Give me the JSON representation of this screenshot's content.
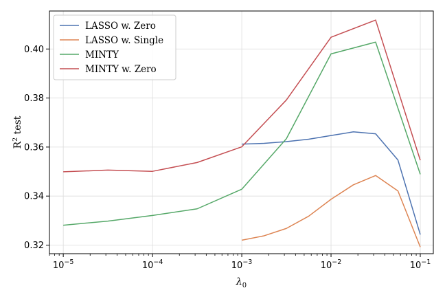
{
  "chart_data": {
    "type": "line",
    "title": "",
    "xlabel": "λ",
    "xlabel_sub": "0",
    "ylabel_base": "R",
    "ylabel_sup": "2",
    "ylabel_rest": " test",
    "xscale": "log",
    "xlim": [
      7e-06,
      0.14
    ],
    "ylim": [
      0.3165,
      0.4155
    ],
    "grid": true,
    "legend_position": "top-left",
    "x_ticks": [
      {
        "value": 1e-05,
        "base": "10",
        "exp": "−5"
      },
      {
        "value": 0.0001,
        "base": "10",
        "exp": "−4"
      },
      {
        "value": 0.001,
        "base": "10",
        "exp": "−3"
      },
      {
        "value": 0.01,
        "base": "10",
        "exp": "−2"
      },
      {
        "value": 0.1,
        "base": "10",
        "exp": "−1"
      }
    ],
    "y_ticks": [
      {
        "value": 0.32,
        "label": "0.32"
      },
      {
        "value": 0.34,
        "label": "0.34"
      },
      {
        "value": 0.36,
        "label": "0.36"
      },
      {
        "value": 0.38,
        "label": "0.38"
      },
      {
        "value": 0.4,
        "label": "0.40"
      }
    ],
    "series": [
      {
        "name": "LASSO w. Zero",
        "color": "#4c72b0",
        "x": [
          0.001,
          0.00178,
          0.00316,
          0.00562,
          0.01,
          0.0178,
          0.0316,
          0.0562,
          0.1
        ],
        "y": [
          0.3612,
          0.3615,
          0.3622,
          0.3632,
          0.3647,
          0.3662,
          0.3654,
          0.3547,
          0.3243
        ]
      },
      {
        "name": "LASSO w. Single",
        "color": "#dd8452",
        "x": [
          0.001,
          0.00178,
          0.00316,
          0.00562,
          0.01,
          0.0178,
          0.0316,
          0.0562,
          0.1
        ],
        "y": [
          0.322,
          0.3238,
          0.3268,
          0.3318,
          0.3387,
          0.3446,
          0.3484,
          0.3421,
          0.3192
        ]
      },
      {
        "name": "MINTY",
        "color": "#55a868",
        "x": [
          1e-05,
          3.16e-05,
          0.0001,
          0.000316,
          0.001,
          0.00316,
          0.01,
          0.0316,
          0.1
        ],
        "y": [
          0.3281,
          0.3298,
          0.3321,
          0.3348,
          0.3428,
          0.3634,
          0.398,
          0.4028,
          0.3489
        ]
      },
      {
        "name": "MINTY w. Zero",
        "color": "#c44e52",
        "x": [
          1e-05,
          3.16e-05,
          0.0001,
          0.000316,
          0.001,
          0.00316,
          0.01,
          0.0316,
          0.1
        ],
        "y": [
          0.3499,
          0.3506,
          0.3501,
          0.3537,
          0.3601,
          0.3792,
          0.4048,
          0.4118,
          0.3546
        ]
      }
    ]
  }
}
